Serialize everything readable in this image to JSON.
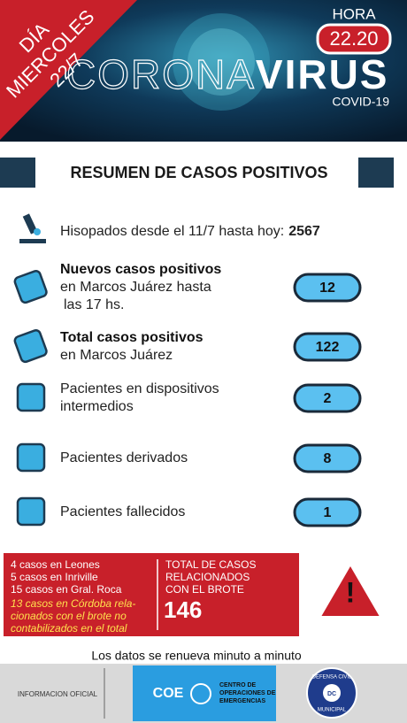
{
  "header": {
    "day_label": "DÍA",
    "weekday": "MIERCOLES",
    "date": "22/7",
    "hour_label": "HORA",
    "hour": "22.20",
    "title_light": "CORONA",
    "title_bold": "VIRUS",
    "subtitle": "COVID-19"
  },
  "section_title": "RESUMEN DE CASOS POSITIVOS",
  "swabs": {
    "label": "Hisopados desde el 11/7 hasta hoy:",
    "value": 2567
  },
  "rows": [
    {
      "bold": "Nuevos casos positivos",
      "lines": [
        "en Marcos Juárez hasta",
        "las 17 hs."
      ],
      "value": 12
    },
    {
      "bold": "Total casos positivos",
      "lines": [
        "en Marcos Juárez"
      ],
      "value": 122
    },
    {
      "lines": [
        "Pacientes en dispositivos",
        "intermedios"
      ],
      "value": 2
    },
    {
      "lines": [
        "Pacientes derivados"
      ],
      "value": 8
    },
    {
      "lines": [
        "Pacientes fallecidos"
      ],
      "value": 1
    }
  ],
  "outbreak": {
    "towns": [
      "4 casos en Leones",
      "5 casos en Inriville",
      "15 casos en Gral. Roca"
    ],
    "note": [
      "13 casos en Córdoba rela-",
      "cionados con el brote no",
      "contabilizados en el total"
    ],
    "total_label": [
      "TOTAL DE CASOS",
      "RELACIONADOS",
      "CON EL BROTE"
    ],
    "total": 146
  },
  "footer_note": "Los datos se renueva minuto a minuto",
  "footer": {
    "official": "INFORMACION OFICIAL",
    "coe": "COE",
    "coe_lines": [
      "CENTRO DE",
      "OPERACIONES DE",
      "EMERGENCIAS"
    ],
    "badge_top": "DEFENSA CIVIL",
    "badge_mid": "DC",
    "badge_bottom": "MUNICIPAL"
  }
}
